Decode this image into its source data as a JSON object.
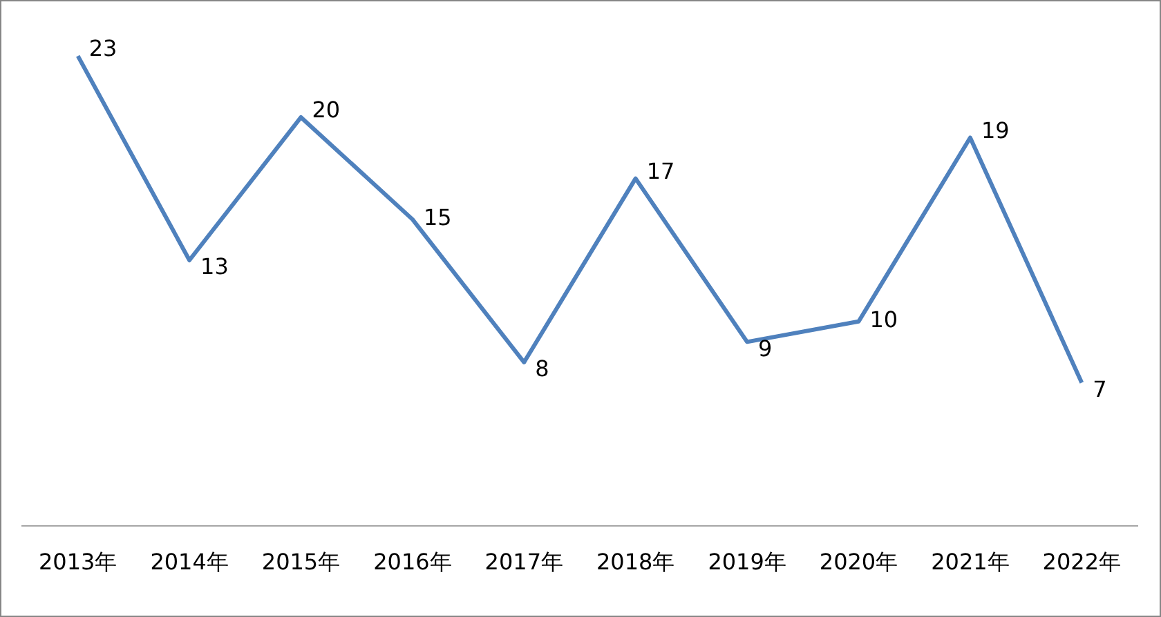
{
  "chart_data": {
    "type": "line",
    "categories": [
      "2013年",
      "2014年",
      "2015年",
      "2016年",
      "2017年",
      "2018年",
      "2019年",
      "2020年",
      "2021年",
      "2022年"
    ],
    "series": [
      {
        "color": "#4f81bd",
        "values": [
          23,
          13,
          20,
          15,
          8,
          17,
          9,
          10,
          19,
          7
        ]
      }
    ],
    "tick_labels": "x",
    "data_labels": true,
    "grid": false,
    "legend": false,
    "marker": "none",
    "line_style": "solid"
  }
}
